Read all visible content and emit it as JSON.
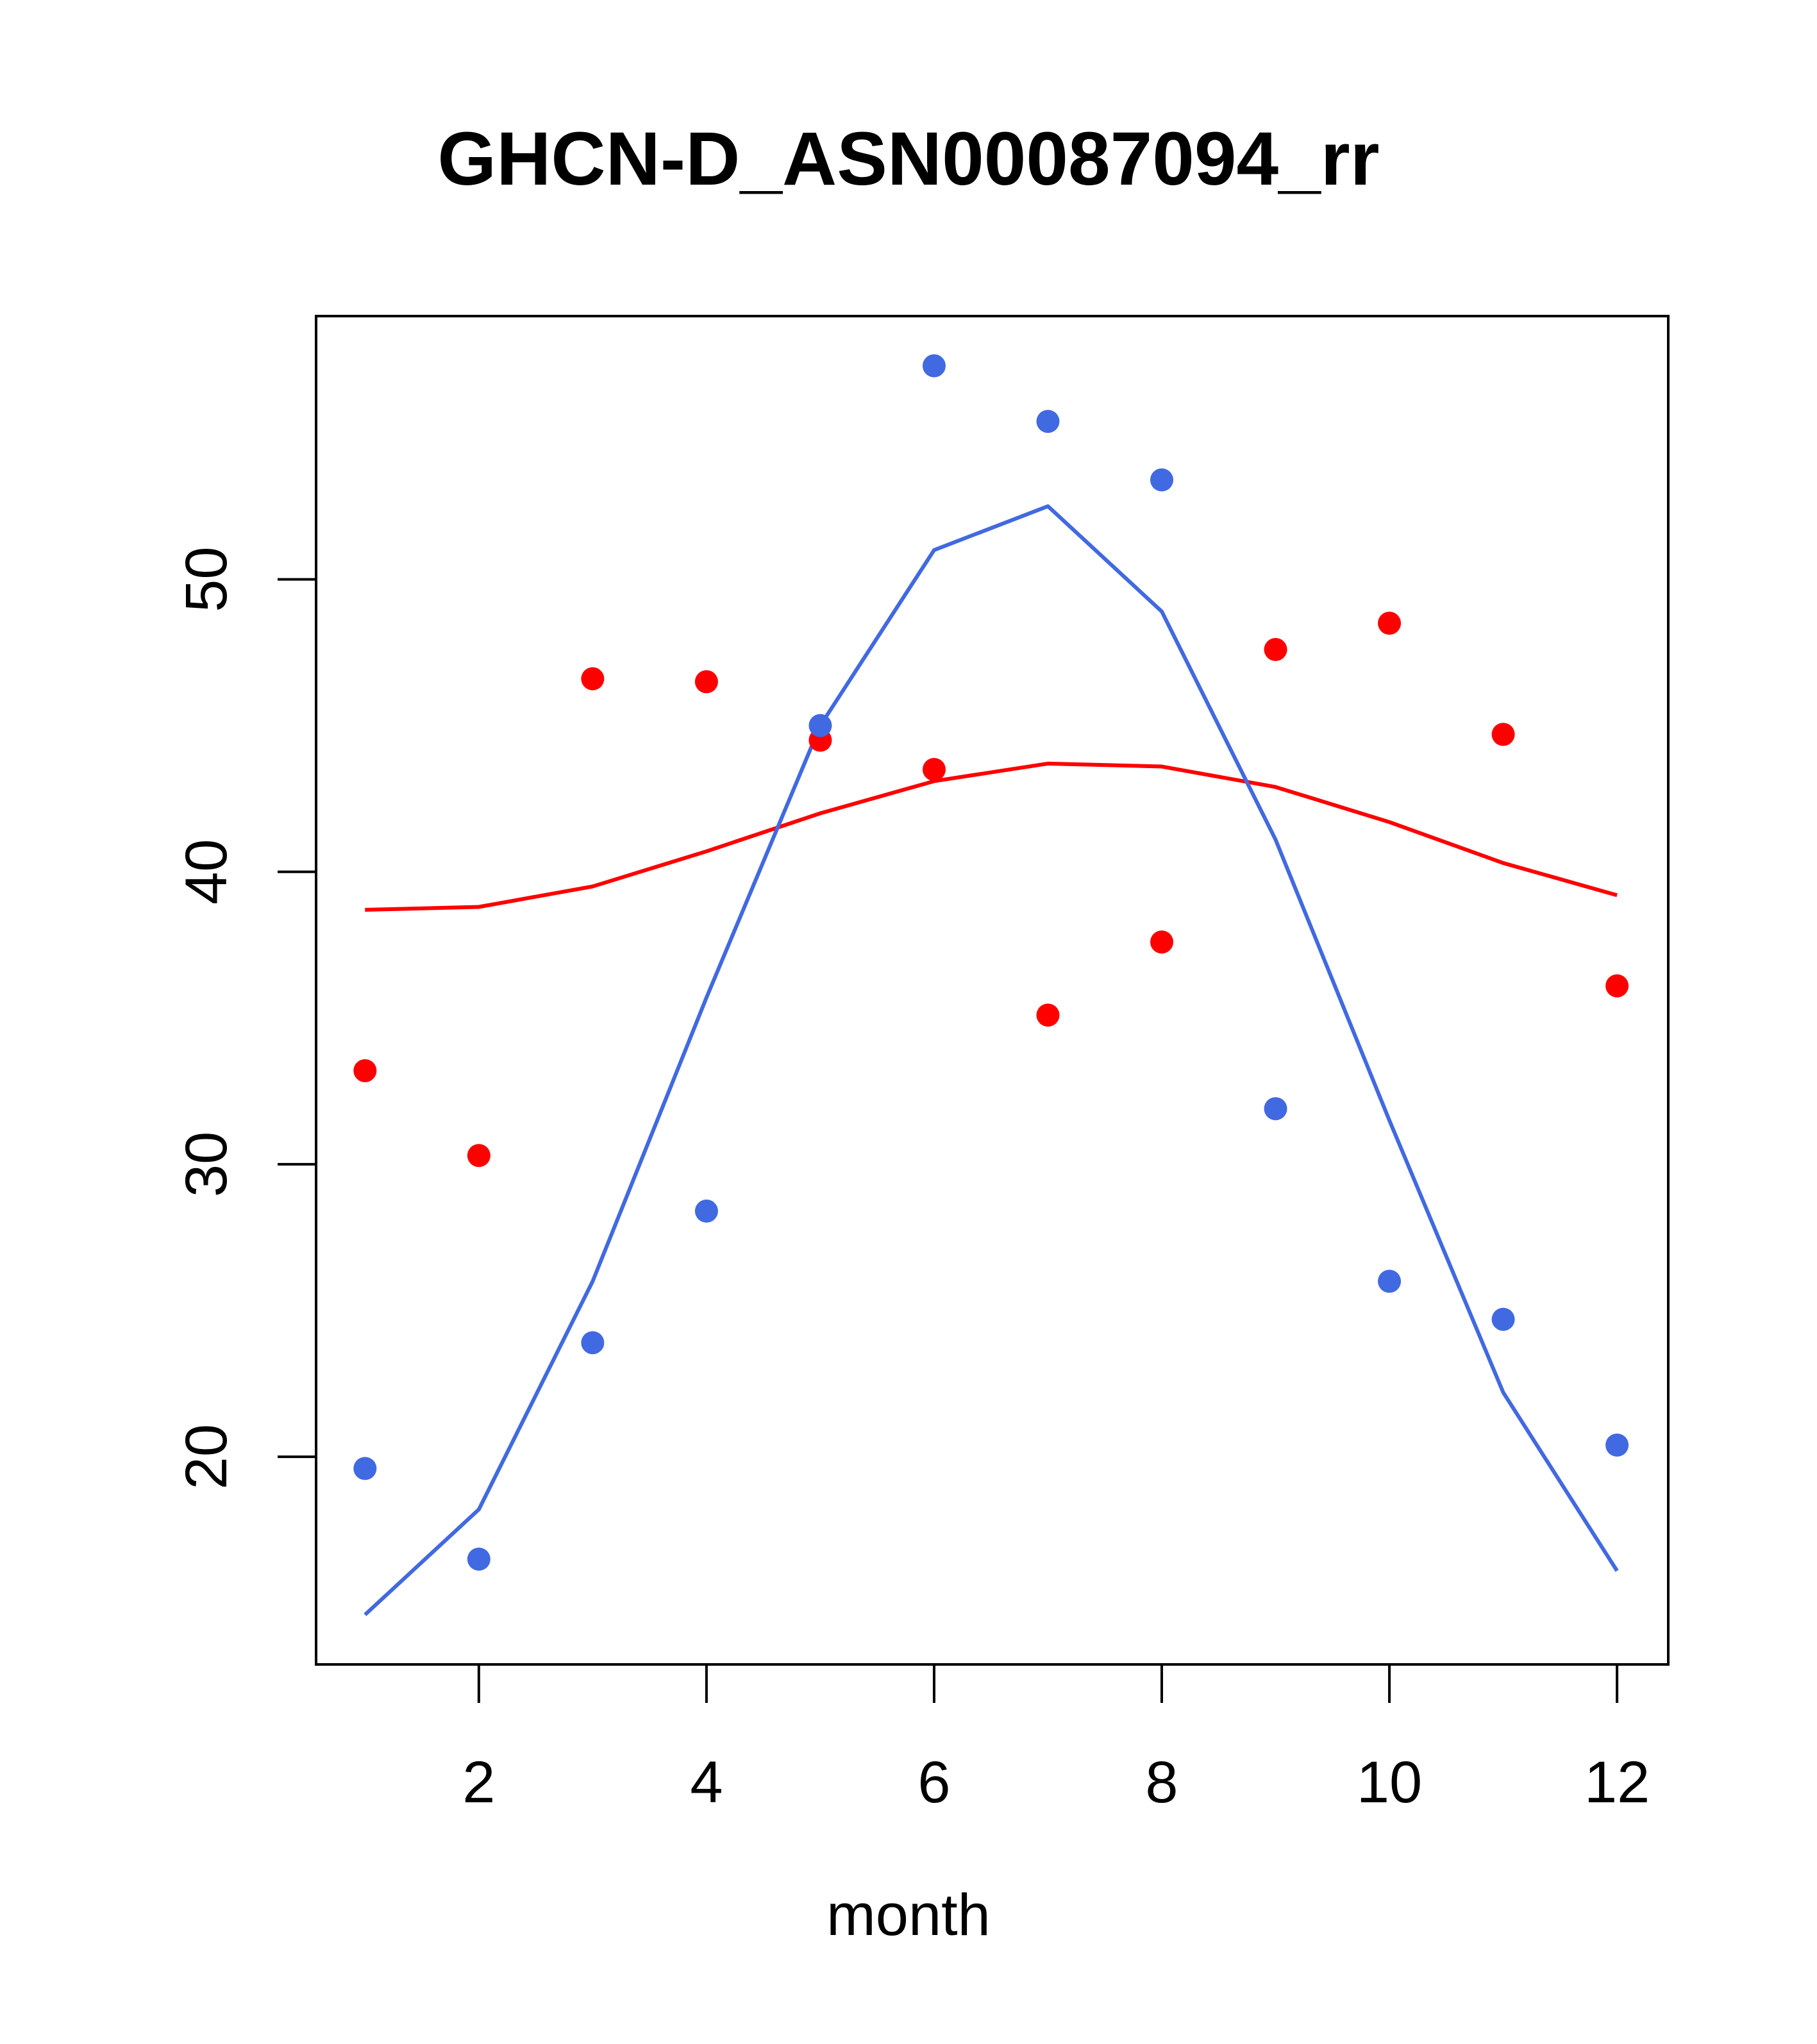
{
  "chart_data": {
    "type": "scatter",
    "title": "GHCN-D_ASN00087094_rr",
    "xlabel": "month",
    "ylabel": "",
    "xlim": [
      0.57,
      12.45
    ],
    "ylim": [
      12.9,
      59.0
    ],
    "x_ticks": [
      2,
      4,
      6,
      8,
      10,
      12
    ],
    "y_ticks": [
      20,
      30,
      40,
      50
    ],
    "grid": false,
    "legend": "none",
    "series": [
      {
        "color": "#ff0000",
        "points_x": [
          1,
          2,
          3,
          4,
          5,
          6,
          7,
          8,
          9,
          10,
          11,
          12
        ],
        "points_y": [
          33.2,
          30.3,
          46.6,
          46.5,
          44.5,
          43.5,
          35.1,
          37.6,
          47.6,
          48.5,
          44.7,
          36.1
        ],
        "line_y": [
          38.7,
          38.8,
          39.5,
          40.7,
          42.0,
          43.1,
          43.7,
          43.6,
          42.9,
          41.7,
          40.3,
          39.2
        ]
      },
      {
        "color": "#4169e1",
        "points_x": [
          1,
          2,
          3,
          4,
          5,
          6,
          7,
          8,
          9,
          10,
          11,
          12
        ],
        "points_y": [
          19.6,
          16.5,
          23.9,
          28.4,
          45.0,
          57.3,
          55.4,
          53.4,
          31.9,
          26.0,
          24.7,
          20.4
        ],
        "line_y": [
          14.6,
          18.2,
          26.0,
          35.7,
          45.0,
          51.0,
          52.5,
          48.9,
          41.1,
          31.5,
          22.2,
          16.1
        ]
      }
    ]
  }
}
